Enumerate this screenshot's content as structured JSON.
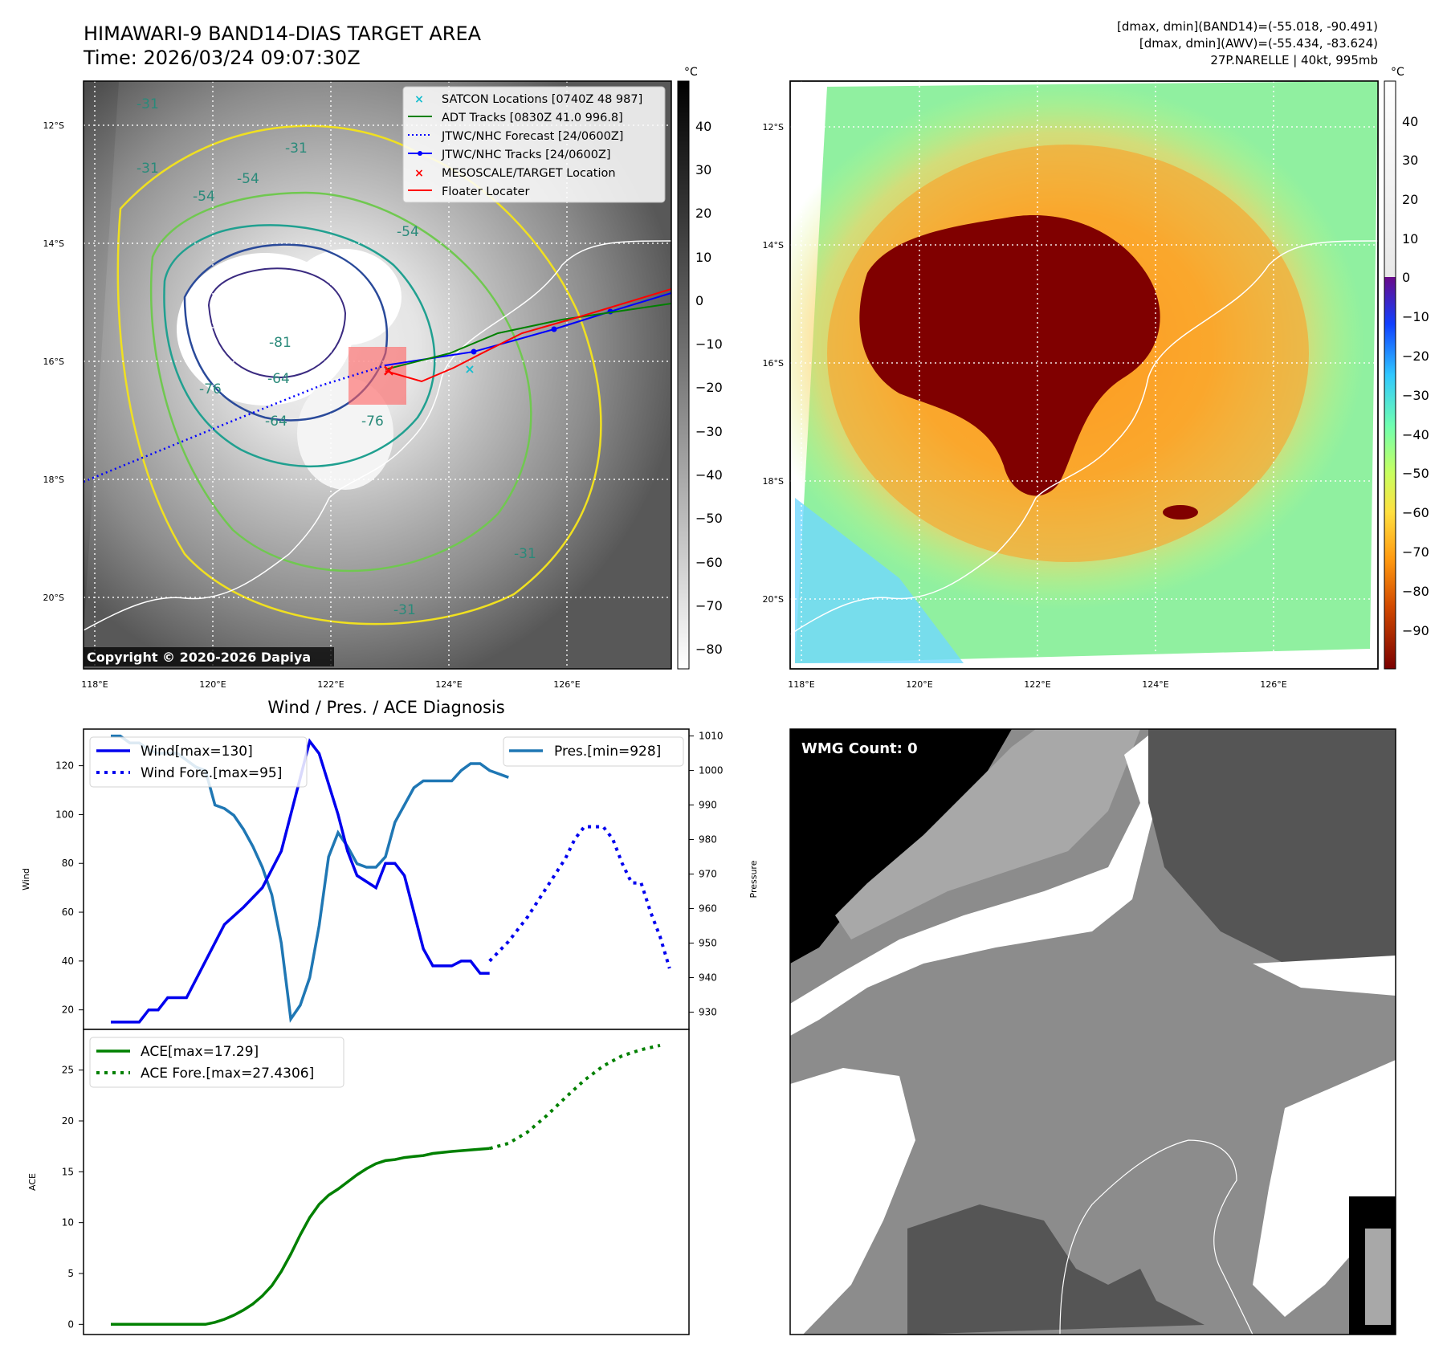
{
  "header": {
    "title": "HIMAWARI-9 BAND14-DIAS TARGET AREA",
    "time": "Time: 2026/03/24 09:07:30Z",
    "stats_line1": "[dmax, dmin](BAND14)=(-55.018, -90.491)",
    "stats_line2": "[dmax, dmin](AWV)=(-55.434, -83.624)",
    "storm_line": "27P.NARELLE | 40kt, 995mb"
  },
  "ir_panel": {
    "copyright": "Copyright © 2020-2026 Dapiya",
    "lat_ticks": [
      "12°S",
      "14°S",
      "16°S",
      "18°S",
      "20°S"
    ],
    "lon_ticks": [
      "118°E",
      "120°E",
      "122°E",
      "124°E",
      "126°E"
    ],
    "contour_labels": [
      "-31",
      "-31",
      "-31",
      "-54",
      "-54",
      "-54",
      "-64",
      "-64",
      "-76",
      "-76",
      "-81",
      "-31",
      "-31"
    ],
    "legend": [
      {
        "label": "SATCON Locations [0740Z 48 987]",
        "color": "#17becf",
        "marker": "x"
      },
      {
        "label": "ADT Tracks [0830Z 41.0 996.8]",
        "color": "#008000",
        "marker": "line"
      },
      {
        "label": "JTWC/NHC Forecast [24/0600Z]",
        "color": "#0000ff",
        "marker": "dotted"
      },
      {
        "label": "JTWC/NHC Tracks [24/0600Z]",
        "color": "#0000ff",
        "marker": "line-dot"
      },
      {
        "label": "MESOSCALE/TARGET Location",
        "color": "#ff0000",
        "marker": "x"
      },
      {
        "label": "Floater Locater",
        "color": "#ff0000",
        "marker": "line"
      }
    ],
    "colorbar_unit": "°C",
    "colorbar_ticks": [
      "40",
      "30",
      "20",
      "10",
      "0",
      "−10",
      "−20",
      "−30",
      "−40",
      "−50",
      "−60",
      "−70",
      "−80"
    ]
  },
  "awv_panel": {
    "lat_ticks": [
      "12°S",
      "14°S",
      "16°S",
      "18°S",
      "20°S"
    ],
    "lon_ticks": [
      "118°E",
      "120°E",
      "122°E",
      "124°E",
      "126°E"
    ],
    "colorbar_unit": "°C",
    "colorbar_ticks": [
      "40",
      "30",
      "20",
      "10",
      "0",
      "−10",
      "−20",
      "−30",
      "−40",
      "−50",
      "−60",
      "−70",
      "−80",
      "−90"
    ]
  },
  "wmg_panel": {
    "label": "WMG Count: 0"
  },
  "chart_data": [
    {
      "type": "line",
      "title": "Wind / Pres. / ACE Diagnosis",
      "ylabel": "Wind",
      "ylabel_right": "Pressure",
      "ylim": [
        12,
        135
      ],
      "ylim_right": [
        925,
        1012
      ],
      "yticks": [
        20,
        40,
        60,
        80,
        100,
        120
      ],
      "yticks_right": [
        930,
        940,
        950,
        960,
        970,
        980,
        990,
        1000,
        1010
      ],
      "x_range": [
        0,
        58
      ],
      "series": [
        {
          "name": "Wind[max=130]",
          "axis": "left",
          "style": "solid",
          "color": "#0000ee",
          "x": [
            0,
            3,
            4,
            5,
            6,
            8,
            10,
            12,
            14,
            16,
            18,
            19,
            20,
            21,
            22,
            24,
            25,
            26,
            28,
            29,
            30,
            31,
            32,
            33,
            34,
            36,
            37,
            38,
            39,
            40
          ],
          "values": [
            15,
            15,
            20,
            20,
            25,
            25,
            40,
            55,
            62,
            70,
            85,
            100,
            115,
            130,
            125,
            100,
            85,
            75,
            70,
            80,
            80,
            75,
            60,
            45,
            38,
            38,
            40,
            40,
            35,
            35
          ]
        },
        {
          "name": "Wind Fore.[max=95]",
          "axis": "left",
          "style": "dotted",
          "color": "#0000ee",
          "x": [
            40,
            42,
            44,
            46,
            48,
            49,
            50,
            52,
            53,
            54,
            55,
            56,
            57,
            58,
            59
          ],
          "values": [
            40,
            48,
            58,
            70,
            82,
            90,
            95,
            95,
            90,
            80,
            72,
            72,
            60,
            50,
            37
          ]
        },
        {
          "name": "Pres.[min=928]",
          "axis": "right",
          "style": "solid",
          "color": "#1f77b4",
          "x": [
            0,
            1,
            2,
            3,
            4,
            5,
            6,
            7,
            8,
            9,
            10,
            11,
            12,
            13,
            14,
            15,
            16,
            17,
            18,
            19,
            20,
            21,
            22,
            23,
            24,
            25,
            26,
            27,
            28,
            29,
            30,
            31,
            32,
            33,
            34,
            35,
            36,
            37,
            38,
            39,
            40,
            41,
            42
          ],
          "values": [
            1010,
            1010,
            1008,
            1008,
            1006,
            1005,
            1005,
            1005,
            1003,
            1001,
            1000,
            990,
            989,
            987,
            983,
            978,
            972,
            964,
            950,
            928,
            932,
            940,
            955,
            975,
            982,
            978,
            973,
            972,
            972,
            975,
            985,
            990,
            995,
            997,
            997,
            997,
            997,
            1000,
            1002,
            1002,
            1000,
            999,
            998
          ]
        }
      ]
    },
    {
      "type": "line",
      "ylabel": "ACE",
      "ylim": [
        -1,
        29
      ],
      "yticks": [
        0,
        5,
        10,
        15,
        20,
        25
      ],
      "x_range": [
        0,
        58
      ],
      "series": [
        {
          "name": "ACE[max=17.29]",
          "style": "solid",
          "color": "#008000",
          "x": [
            0,
            2,
            4,
            6,
            8,
            10,
            11,
            12,
            13,
            14,
            15,
            16,
            17,
            18,
            19,
            20,
            21,
            22,
            23,
            24,
            25,
            26,
            27,
            28,
            29,
            30,
            31,
            32,
            33,
            34,
            36,
            38,
            40
          ],
          "values": [
            0,
            0,
            0,
            0,
            0,
            0,
            0.2,
            0.5,
            0.9,
            1.4,
            2.0,
            2.8,
            3.8,
            5.2,
            6.9,
            8.8,
            10.5,
            11.8,
            12.7,
            13.3,
            14.0,
            14.7,
            15.3,
            15.8,
            16.1,
            16.2,
            16.4,
            16.5,
            16.6,
            16.8,
            17.0,
            17.15,
            17.29
          ]
        },
        {
          "name": "ACE Fore.[max=27.4306]",
          "style": "dotted",
          "color": "#008000",
          "x": [
            40,
            42,
            44,
            46,
            48,
            50,
            52,
            54,
            56,
            58
          ],
          "values": [
            17.29,
            17.8,
            18.9,
            20.5,
            22.3,
            24.0,
            25.4,
            26.4,
            27.0,
            27.43
          ]
        }
      ]
    }
  ]
}
